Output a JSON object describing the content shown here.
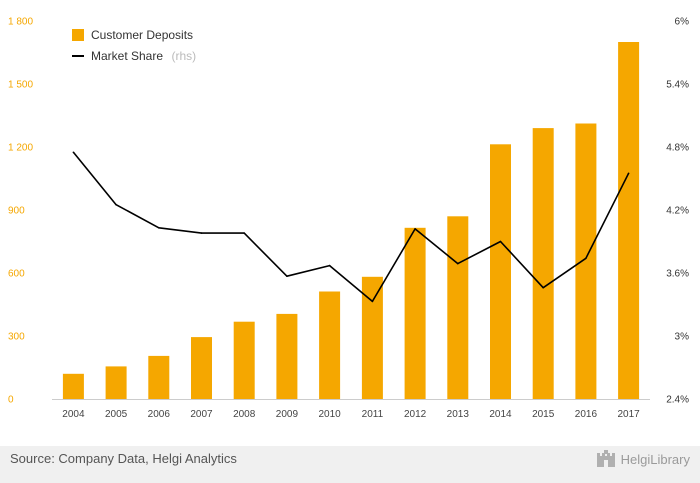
{
  "chart_data": {
    "type": "bar",
    "categories": [
      "2004",
      "2005",
      "2006",
      "2007",
      "2008",
      "2009",
      "2010",
      "2011",
      "2012",
      "2013",
      "2014",
      "2015",
      "2016",
      "2017"
    ],
    "series": [
      {
        "name": "Customer Deposits",
        "type": "bar",
        "axis": "left",
        "color": "#f5a700",
        "values": [
          120,
          155,
          205,
          295,
          368,
          405,
          512,
          582,
          815,
          870,
          1213,
          1290,
          1312,
          1700
        ]
      },
      {
        "name": "Market Share",
        "name_suffix": "(rhs)",
        "type": "line",
        "axis": "right",
        "unit": "%",
        "color": "#000000",
        "values": [
          4.75,
          4.25,
          4.03,
          3.98,
          3.98,
          3.57,
          3.67,
          3.33,
          4.02,
          3.69,
          3.9,
          3.46,
          3.74,
          4.55
        ]
      }
    ],
    "left_axis": {
      "ylim": [
        0,
        1800
      ],
      "ticks": [
        0,
        300,
        600,
        900,
        1200,
        1500,
        1800
      ],
      "tick_labels": [
        "0",
        "300",
        "600",
        "900",
        "1 200",
        "1 500",
        "1 800"
      ]
    },
    "right_axis": {
      "ylim": [
        2.4,
        6.0
      ],
      "ticks": [
        2.4,
        3.0,
        3.6,
        4.2,
        4.8,
        5.4,
        6.0
      ],
      "tick_labels": [
        "2.4%",
        "3%",
        "3.6%",
        "4.2%",
        "4.8%",
        "5.4%",
        "6%"
      ]
    },
    "grid": false,
    "legend_position": "top-left"
  },
  "footer": {
    "source": "Source: Company Data, Helgi Analytics",
    "brand": "HelgiLibrary",
    "brand_icon": "castle-logo-icon"
  }
}
